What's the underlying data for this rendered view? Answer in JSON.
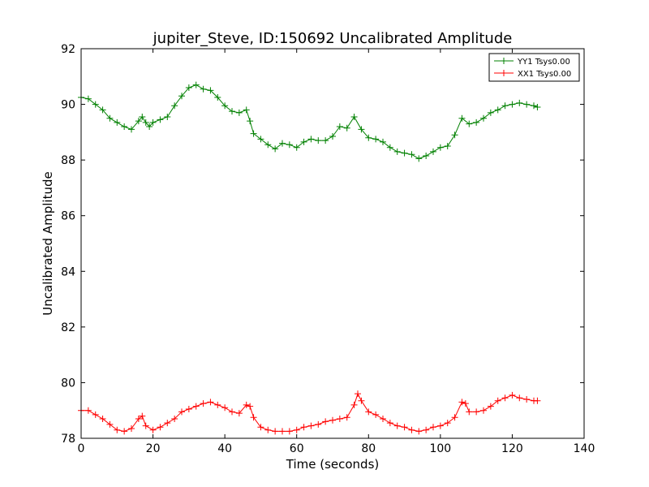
{
  "chart_data": {
    "type": "line",
    "title": "jupiter_Steve, ID:150692 Uncalibrated Amplitude",
    "xlabel": "Time (seconds)",
    "ylabel": "Uncalibrated Amplitude",
    "xlim": [
      0,
      140
    ],
    "ylim": [
      78,
      92
    ],
    "xticks": [
      0,
      20,
      40,
      60,
      80,
      100,
      120,
      140
    ],
    "yticks": [
      78,
      80,
      82,
      84,
      86,
      88,
      90,
      92
    ],
    "grid": false,
    "legend_position": "top-right",
    "marker": "+",
    "series": [
      {
        "name": "YY1 Tsys0.00",
        "color": "#008000",
        "x": [
          0,
          2,
          4,
          6,
          8,
          10,
          12,
          14,
          16,
          17,
          18,
          19,
          20,
          22,
          24,
          26,
          28,
          30,
          32,
          34,
          36,
          38,
          40,
          42,
          44,
          46,
          47,
          48,
          50,
          52,
          54,
          56,
          58,
          60,
          62,
          64,
          66,
          68,
          70,
          72,
          74,
          76,
          78,
          80,
          82,
          84,
          86,
          88,
          90,
          92,
          94,
          96,
          98,
          100,
          102,
          104,
          106,
          108,
          110,
          112,
          114,
          116,
          118,
          120,
          122,
          124,
          126,
          127
        ],
        "values": [
          90.25,
          90.2,
          90.0,
          89.8,
          89.5,
          89.35,
          89.2,
          89.1,
          89.4,
          89.55,
          89.35,
          89.2,
          89.35,
          89.45,
          89.55,
          89.95,
          90.3,
          90.6,
          90.7,
          90.55,
          90.5,
          90.25,
          89.95,
          89.75,
          89.7,
          89.8,
          89.4,
          88.95,
          88.75,
          88.55,
          88.4,
          88.6,
          88.55,
          88.45,
          88.65,
          88.75,
          88.7,
          88.7,
          88.85,
          89.2,
          89.15,
          89.55,
          89.1,
          88.8,
          88.75,
          88.65,
          88.45,
          88.3,
          88.25,
          88.2,
          88.05,
          88.15,
          88.3,
          88.45,
          88.5,
          88.9,
          89.5,
          89.3,
          89.35,
          89.5,
          89.7,
          89.8,
          89.95,
          90.0,
          90.05,
          90.0,
          89.95,
          89.9
        ]
      },
      {
        "name": "XX1 Tsys0.00",
        "color": "#ff0000",
        "x": [
          0,
          2,
          4,
          6,
          8,
          10,
          12,
          14,
          16,
          17,
          18,
          20,
          22,
          24,
          26,
          28,
          30,
          32,
          34,
          36,
          38,
          40,
          42,
          44,
          46,
          47,
          48,
          50,
          52,
          54,
          56,
          58,
          60,
          62,
          64,
          66,
          68,
          70,
          72,
          74,
          76,
          77,
          78,
          80,
          82,
          84,
          86,
          88,
          90,
          92,
          94,
          96,
          98,
          100,
          102,
          104,
          106,
          107,
          108,
          110,
          112,
          114,
          116,
          118,
          120,
          122,
          124,
          126,
          127
        ],
        "values": [
          79.0,
          79.0,
          78.85,
          78.7,
          78.5,
          78.3,
          78.25,
          78.35,
          78.7,
          78.8,
          78.45,
          78.3,
          78.4,
          78.55,
          78.7,
          78.95,
          79.05,
          79.15,
          79.25,
          79.3,
          79.2,
          79.1,
          78.95,
          78.9,
          79.2,
          79.15,
          78.75,
          78.4,
          78.3,
          78.25,
          78.25,
          78.25,
          78.3,
          78.4,
          78.45,
          78.5,
          78.6,
          78.65,
          78.7,
          78.75,
          79.2,
          79.6,
          79.35,
          78.95,
          78.85,
          78.7,
          78.55,
          78.45,
          78.4,
          78.3,
          78.25,
          78.3,
          78.4,
          78.45,
          78.55,
          78.75,
          79.3,
          79.25,
          78.95,
          78.95,
          79.0,
          79.15,
          79.35,
          79.45,
          79.55,
          79.45,
          79.4,
          79.35,
          79.35
        ]
      }
    ]
  }
}
